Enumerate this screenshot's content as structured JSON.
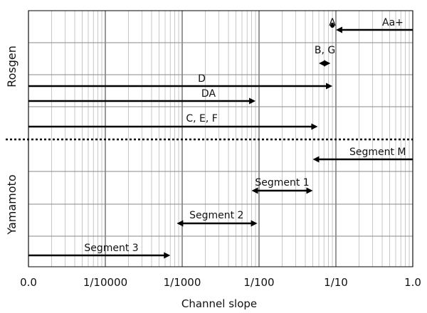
{
  "chart_data": {
    "type": "range",
    "x_axis": {
      "label": "Channel slope",
      "scale": "log",
      "range": [
        1e-05,
        1.0
      ],
      "ticks": [
        {
          "value": 1e-05,
          "label": "0.0"
        },
        {
          "value": 0.0001,
          "label": "1/10000"
        },
        {
          "value": 0.001,
          "label": "1/1000"
        },
        {
          "value": 0.01,
          "label": "1/100"
        },
        {
          "value": 0.1,
          "label": "1/10"
        },
        {
          "value": 1.0,
          "label": "1.0"
        }
      ]
    },
    "groups": [
      {
        "label": "Rosgen",
        "rows": [
          1,
          5
        ]
      },
      {
        "label": "Yamamoto",
        "rows": [
          6,
          9
        ]
      }
    ],
    "separator_after_row": 5,
    "rows_total": 9,
    "ranges": [
      {
        "label": "A",
        "row": 1,
        "label_row": 1,
        "x_start": 0.088,
        "x_end": 0.09,
        "arrow": "point",
        "label_at": 0.09
      },
      {
        "label": "Aa+",
        "row": 1,
        "label_row": 1,
        "x_start": 0.1,
        "x_end": 1.0,
        "arrow": "start",
        "label_at": 0.55
      },
      {
        "label": "B, G",
        "row": 2,
        "label_row": 2,
        "x_start": 0.06,
        "x_end": 0.085,
        "arrow": "both",
        "label_at": 0.072
      },
      {
        "label": "D",
        "row": 3,
        "label_row": 3,
        "x_start": 1e-05,
        "x_end": 0.09,
        "arrow": "end",
        "label_at": 0.0018
      },
      {
        "label": "DA",
        "row": 4,
        "label_row": 4,
        "x_start": 1e-05,
        "x_end": 0.009,
        "arrow": "end",
        "label_at": 0.0022
      },
      {
        "label": "C, E, F",
        "row": 5,
        "label_row": 5,
        "x_start": 1e-05,
        "x_end": 0.058,
        "arrow": "end",
        "label_at": 0.0018
      },
      {
        "label": "Segment M",
        "row": 6,
        "label_row": 6,
        "x_start": 0.05,
        "x_end": 1.0,
        "arrow": "start",
        "label_at": 0.35
      },
      {
        "label": "Segment 1",
        "row": 7,
        "label_row": 7,
        "x_start": 0.008,
        "x_end": 0.05,
        "arrow": "both",
        "label_at": 0.02
      },
      {
        "label": "Segment 2",
        "row": 8,
        "label_row": 8,
        "x_start": 0.00085,
        "x_end": 0.0095,
        "arrow": "both",
        "label_at": 0.0028
      },
      {
        "label": "Segment 3",
        "row": 9,
        "label_row": 9,
        "x_start": 1e-05,
        "x_end": 0.0007,
        "arrow": "end",
        "label_at": 0.00012
      }
    ]
  }
}
